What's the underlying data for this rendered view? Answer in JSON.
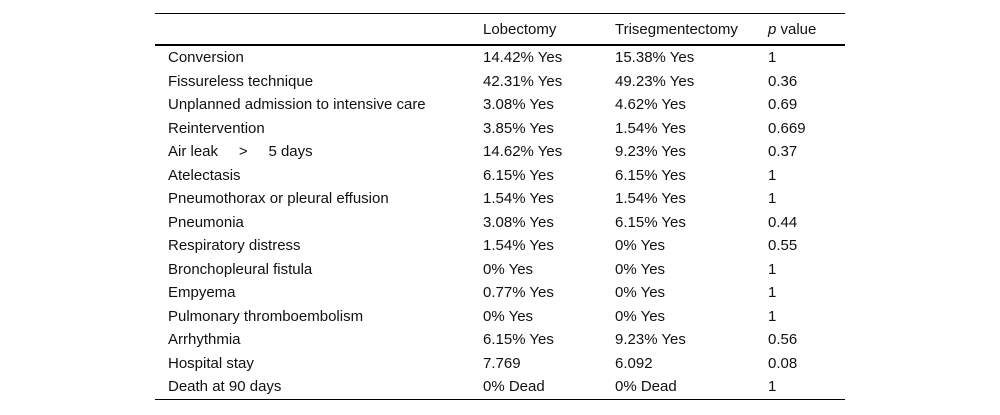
{
  "table": {
    "header": {
      "label": "",
      "lobectomy": "Lobectomy",
      "trisegmentectomy": "Trisegmentectomy",
      "p_symbol": "p",
      "p_rest": " value"
    },
    "rows": [
      {
        "label": "Conversion",
        "lobectomy": "14.42% Yes",
        "trisegmentectomy": "15.38% Yes",
        "p": "1"
      },
      {
        "label": "Fissureless technique",
        "lobectomy": "42.31% Yes",
        "trisegmentectomy": "49.23% Yes",
        "p": "0.36"
      },
      {
        "label": "Unplanned admission to intensive care",
        "lobectomy": "3.08% Yes",
        "trisegmentectomy": "4.62% Yes",
        "p": "0.69"
      },
      {
        "label": "Reintervention",
        "lobectomy": "3.85% Yes",
        "trisegmentectomy": "1.54% Yes",
        "p": "0.669"
      },
      {
        "label": "Air leak     >     5 days",
        "lobectomy": "14.62% Yes",
        "trisegmentectomy": "9.23% Yes",
        "p": "0.37"
      },
      {
        "label": "Atelectasis",
        "lobectomy": "6.15% Yes",
        "trisegmentectomy": "6.15% Yes",
        "p": "1"
      },
      {
        "label": "Pneumothorax or pleural effusion",
        "lobectomy": "1.54% Yes",
        "trisegmentectomy": "1.54% Yes",
        "p": "1"
      },
      {
        "label": "Pneumonia",
        "lobectomy": "3.08% Yes",
        "trisegmentectomy": "6.15% Yes",
        "p": "0.44"
      },
      {
        "label": "Respiratory distress",
        "lobectomy": "1.54% Yes",
        "trisegmentectomy": "0% Yes",
        "p": "0.55"
      },
      {
        "label": "Bronchopleural fistula",
        "lobectomy": "0% Yes",
        "trisegmentectomy": "0% Yes",
        "p": "1"
      },
      {
        "label": "Empyema",
        "lobectomy": "0.77% Yes",
        "trisegmentectomy": "0% Yes",
        "p": "1"
      },
      {
        "label": "Pulmonary thromboembolism",
        "lobectomy": "0% Yes",
        "trisegmentectomy": "0% Yes",
        "p": "1"
      },
      {
        "label": "Arrhythmia",
        "lobectomy": "6.15% Yes",
        "trisegmentectomy": "9.23% Yes",
        "p": "0.56"
      },
      {
        "label": "Hospital stay",
        "lobectomy": "7.769",
        "trisegmentectomy": "6.092",
        "p": "0.08"
      },
      {
        "label": "Death at 90 days",
        "lobectomy": "0% Dead",
        "trisegmentectomy": "0% Dead",
        "p": "1"
      }
    ]
  }
}
